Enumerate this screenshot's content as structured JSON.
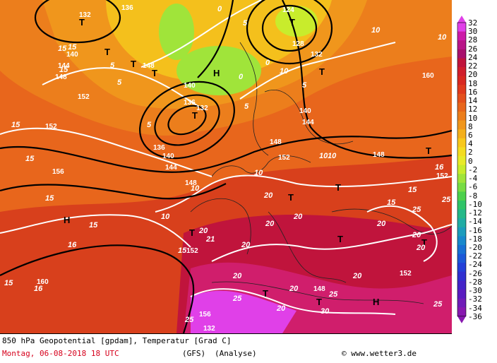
{
  "footer": {
    "field_line": "850 hPa Geopotential [gpdam], Temperatur [Grad C]",
    "date_line": "Montag, 06-08-2018  18 UTC",
    "model": "(GFS)",
    "run": "(Analyse)",
    "copyright": "© www.wetter3.de"
  },
  "legend": {
    "ticks": [
      "32",
      "30",
      "28",
      "26",
      "24",
      "22",
      "20",
      "18",
      "16",
      "14",
      "12",
      "10",
      "8",
      "6",
      "4",
      "2",
      "0",
      "-2",
      "-4",
      "-6",
      "-8",
      "-10",
      "-12",
      "-14",
      "-16",
      "-18",
      "-20",
      "-22",
      "-24",
      "-26",
      "-28",
      "-30",
      "-32",
      "-34",
      "-36"
    ],
    "colors": [
      "#e040e8",
      "#cc1aa8",
      "#b81488",
      "#a8106c",
      "#c0143c",
      "#d01e2c",
      "#d82820",
      "#e03a1c",
      "#e4501c",
      "#e8661c",
      "#ec7e1c",
      "#f0961c",
      "#f4b01c",
      "#f8c81c",
      "#f4dc20",
      "#e8ea28",
      "#c8ec2c",
      "#a0e43a",
      "#78dc44",
      "#4cd04c",
      "#30c468",
      "#24b888",
      "#20aca4",
      "#1c9cbc",
      "#1888cc",
      "#1870d4",
      "#1c58d8",
      "#2440d8",
      "#3030d0",
      "#4424c8",
      "#5a1cc0",
      "#701cb8",
      "#8818b0"
    ],
    "color_hex": {
      "warm": "#c0143c",
      "hot": "#e040e8",
      "cold": "#24b888"
    }
  },
  "map": {
    "pressure_highs": [
      {
        "label": "H"
      },
      {
        "label": "H"
      },
      {
        "label": "H"
      }
    ],
    "pressure_lows": [
      {
        "label": "T"
      },
      {
        "label": "T"
      },
      {
        "label": "T"
      },
      {
        "label": "T"
      },
      {
        "label": "T"
      },
      {
        "label": "T"
      },
      {
        "label": "T"
      },
      {
        "label": "T"
      },
      {
        "label": "T"
      },
      {
        "label": "T"
      },
      {
        "label": "T"
      },
      {
        "label": "T"
      },
      {
        "label": "T"
      },
      {
        "label": "T"
      },
      {
        "label": "T"
      }
    ],
    "geopotential_labels": [
      "132",
      "136",
      "124",
      "128",
      "132",
      "140",
      "144",
      "148",
      "152",
      "140",
      "136",
      "132",
      "136",
      "140",
      "144",
      "148",
      "152",
      "156",
      "160",
      "148",
      "152",
      "152",
      "148",
      "160",
      "152",
      "156",
      "132",
      "152",
      "144",
      "148",
      "140",
      "148"
    ],
    "temperature_labels": [
      "15",
      "15",
      "15",
      "15",
      "15",
      "10",
      "10",
      "15",
      "15",
      "16",
      "16",
      "15",
      "10",
      "10",
      "20",
      "20",
      "20",
      "20",
      "20",
      "20",
      "20",
      "20",
      "20",
      "20",
      "20",
      "20",
      "25",
      "25",
      "25",
      "25",
      "25",
      "30",
      "25",
      "10",
      "5",
      "5",
      "5",
      "5",
      "0",
      "0",
      "0",
      "5",
      "5",
      "10",
      "10",
      "15",
      "15",
      "21",
      "15",
      "10",
      "16"
    ]
  }
}
